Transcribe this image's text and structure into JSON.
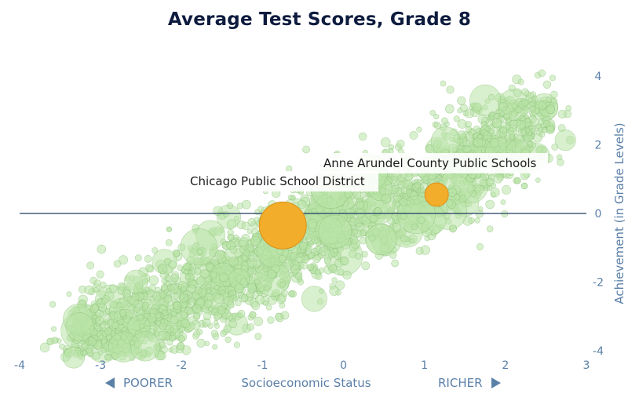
{
  "chart_data": {
    "type": "scatter",
    "title": "Average Test Scores, Grade 8",
    "xlabel": "Socioeconomic Status",
    "ylabel": "Achievement (in Grade Levels)",
    "x_left_label": "POORER",
    "x_right_label": "RICHER",
    "xlim": [
      -4,
      3
    ],
    "ylim": [
      -4,
      4
    ],
    "x_ticks": [
      "-4",
      "-3",
      "-2",
      "-1",
      "0",
      "1",
      "2",
      "3"
    ],
    "y_ticks": [
      "4",
      "2",
      "0",
      "-2",
      "-4"
    ],
    "reference_line_y": 0,
    "background_series": {
      "description_count": 2600,
      "trend": {
        "slope": 1.15,
        "intercept": -0.25
      },
      "color": "#b9e4a7",
      "stroke": "#8cc27a"
    },
    "highlighted": [
      {
        "name": "Chicago Public School District",
        "x": -0.75,
        "y": -0.35,
        "size": "large",
        "color": "#f2ad2a"
      },
      {
        "name": "Anne Arundel County Public Schools",
        "x": 1.15,
        "y": 0.55,
        "size": "small",
        "color": "#f2ad2a"
      }
    ],
    "grid": false,
    "legend": "none"
  }
}
